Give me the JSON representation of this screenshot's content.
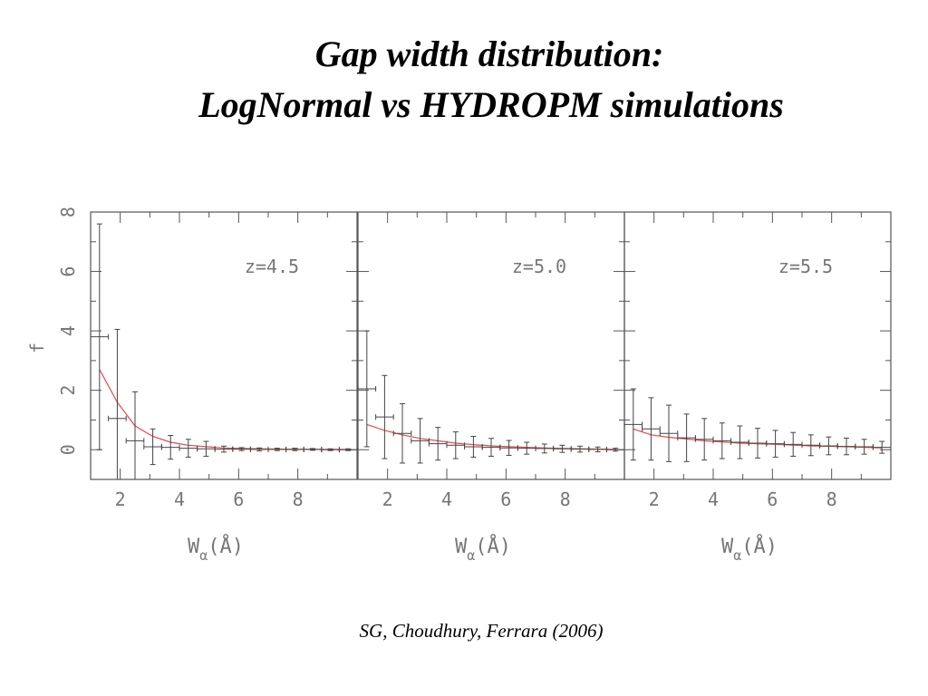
{
  "slide": {
    "title_line1": "Gap width distribution:",
    "title_line2": "LogNormal vs HYDROPM simulations",
    "citation": "SG, Choudhury, Ferrara (2006)"
  },
  "colors": {
    "axis": "#555555",
    "errorbar": "#444444",
    "model_line": "#e8474e",
    "label": "#777777"
  },
  "chart_data": {
    "type": "scatter",
    "ylabel": "f",
    "xlabel_main": "W",
    "xlabel_sub": "α",
    "xlabel_unit": "(Å)",
    "xlim": [
      1,
      10
    ],
    "ylim": [
      -1,
      8
    ],
    "x_ticks": [
      2,
      4,
      6,
      8
    ],
    "x_tick_labels": [
      "2",
      "4",
      "6",
      "8"
    ],
    "y_ticks": [
      0,
      2,
      4,
      6,
      8
    ],
    "y_tick_labels": [
      "0",
      "2",
      "4",
      "6",
      "8"
    ],
    "panels": [
      {
        "label": "z=4.5",
        "data_points": [
          {
            "x": 1.3,
            "xerr": 0.3,
            "y": 3.8,
            "yerr": 3.8
          },
          {
            "x": 1.9,
            "xerr": 0.3,
            "y": 1.05,
            "yerr": 3.0
          },
          {
            "x": 2.5,
            "xerr": 0.3,
            "y": 0.3,
            "yerr": 1.65
          },
          {
            "x": 3.1,
            "xerr": 0.3,
            "y": 0.1,
            "yerr": 0.6
          },
          {
            "x": 3.7,
            "xerr": 0.3,
            "y": 0.08,
            "yerr": 0.4
          },
          {
            "x": 4.3,
            "xerr": 0.3,
            "y": 0.05,
            "yerr": 0.3
          },
          {
            "x": 4.9,
            "xerr": 0.3,
            "y": 0.03,
            "yerr": 0.25
          },
          {
            "x": 5.5,
            "xerr": 0.3,
            "y": 0.02,
            "yerr": 0.1
          },
          {
            "x": 6.1,
            "xerr": 0.3,
            "y": 0.02,
            "yerr": 0.05
          },
          {
            "x": 6.7,
            "xerr": 0.3,
            "y": 0.01,
            "yerr": 0.05
          },
          {
            "x": 7.3,
            "xerr": 0.3,
            "y": 0.01,
            "yerr": 0.04
          },
          {
            "x": 7.9,
            "xerr": 0.3,
            "y": 0.01,
            "yerr": 0.04
          },
          {
            "x": 8.5,
            "xerr": 0.3,
            "y": 0.01,
            "yerr": 0.03
          },
          {
            "x": 9.1,
            "xerr": 0.3,
            "y": 0.0,
            "yerr": 0.03
          },
          {
            "x": 9.7,
            "xerr": 0.3,
            "y": 0.0,
            "yerr": 0.03
          }
        ],
        "model": {
          "x": [
            1.3,
            1.9,
            2.5,
            3.1,
            3.7,
            4.3,
            4.9,
            5.5,
            6.1,
            7.3,
            8.5,
            9.7
          ],
          "y": [
            2.7,
            1.6,
            0.8,
            0.45,
            0.25,
            0.15,
            0.1,
            0.06,
            0.04,
            0.02,
            0.01,
            0.01
          ]
        }
      },
      {
        "label": "z=5.0",
        "data_points": [
          {
            "x": 1.3,
            "xerr": 0.3,
            "y": 2.05,
            "yerr": 1.95
          },
          {
            "x": 1.9,
            "xerr": 0.3,
            "y": 1.1,
            "yerr": 1.4
          },
          {
            "x": 2.5,
            "xerr": 0.3,
            "y": 0.55,
            "yerr": 1.0
          },
          {
            "x": 3.1,
            "xerr": 0.3,
            "y": 0.3,
            "yerr": 0.75
          },
          {
            "x": 3.7,
            "xerr": 0.3,
            "y": 0.2,
            "yerr": 0.55
          },
          {
            "x": 4.3,
            "xerr": 0.3,
            "y": 0.15,
            "yerr": 0.45
          },
          {
            "x": 4.9,
            "xerr": 0.3,
            "y": 0.1,
            "yerr": 0.35
          },
          {
            "x": 5.5,
            "xerr": 0.3,
            "y": 0.08,
            "yerr": 0.3
          },
          {
            "x": 6.1,
            "xerr": 0.3,
            "y": 0.06,
            "yerr": 0.25
          },
          {
            "x": 6.7,
            "xerr": 0.3,
            "y": 0.05,
            "yerr": 0.2
          },
          {
            "x": 7.3,
            "xerr": 0.3,
            "y": 0.04,
            "yerr": 0.15
          },
          {
            "x": 7.9,
            "xerr": 0.3,
            "y": 0.03,
            "yerr": 0.12
          },
          {
            "x": 8.5,
            "xerr": 0.3,
            "y": 0.02,
            "yerr": 0.1
          },
          {
            "x": 9.1,
            "xerr": 0.3,
            "y": 0.01,
            "yerr": 0.08
          },
          {
            "x": 9.7,
            "xerr": 0.3,
            "y": 0.0,
            "yerr": 0.05
          }
        ],
        "model": {
          "x": [
            1.3,
            1.9,
            2.5,
            3.1,
            3.7,
            4.3,
            4.9,
            5.5,
            6.1,
            7.3,
            8.5,
            9.7
          ],
          "y": [
            0.85,
            0.65,
            0.5,
            0.38,
            0.3,
            0.22,
            0.17,
            0.13,
            0.1,
            0.06,
            0.03,
            0.01
          ]
        }
      },
      {
        "label": "z=5.5",
        "data_points": [
          {
            "x": 1.3,
            "xerr": 0.3,
            "y": 0.85,
            "yerr": 1.2
          },
          {
            "x": 1.9,
            "xerr": 0.3,
            "y": 0.7,
            "yerr": 1.05
          },
          {
            "x": 2.5,
            "xerr": 0.3,
            "y": 0.55,
            "yerr": 0.95
          },
          {
            "x": 3.1,
            "xerr": 0.3,
            "y": 0.4,
            "yerr": 0.8
          },
          {
            "x": 3.7,
            "xerr": 0.3,
            "y": 0.35,
            "yerr": 0.7
          },
          {
            "x": 4.3,
            "xerr": 0.3,
            "y": 0.3,
            "yerr": 0.6
          },
          {
            "x": 4.9,
            "xerr": 0.3,
            "y": 0.25,
            "yerr": 0.55
          },
          {
            "x": 5.5,
            "xerr": 0.3,
            "y": 0.22,
            "yerr": 0.5
          },
          {
            "x": 6.1,
            "xerr": 0.3,
            "y": 0.2,
            "yerr": 0.45
          },
          {
            "x": 6.7,
            "xerr": 0.3,
            "y": 0.18,
            "yerr": 0.4
          },
          {
            "x": 7.3,
            "xerr": 0.3,
            "y": 0.15,
            "yerr": 0.35
          },
          {
            "x": 7.9,
            "xerr": 0.3,
            "y": 0.13,
            "yerr": 0.3
          },
          {
            "x": 8.5,
            "xerr": 0.3,
            "y": 0.11,
            "yerr": 0.28
          },
          {
            "x": 9.1,
            "xerr": 0.3,
            "y": 0.1,
            "yerr": 0.25
          },
          {
            "x": 9.7,
            "xerr": 0.3,
            "y": 0.08,
            "yerr": 0.2
          }
        ],
        "model": {
          "x": [
            1.3,
            1.9,
            2.5,
            3.1,
            3.7,
            4.3,
            4.9,
            5.5,
            6.1,
            7.3,
            8.5,
            9.7
          ],
          "y": [
            0.7,
            0.5,
            0.42,
            0.36,
            0.3,
            0.26,
            0.22,
            0.2,
            0.18,
            0.13,
            0.1,
            0.06
          ]
        }
      }
    ]
  }
}
